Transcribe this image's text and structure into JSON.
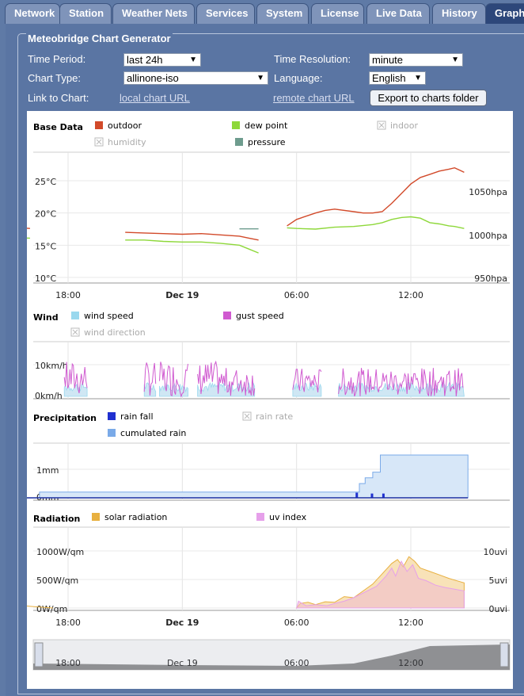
{
  "tabs": [
    {
      "label": "Network",
      "active": false
    },
    {
      "label": "Station",
      "active": false
    },
    {
      "label": "Weather Nets",
      "active": false
    },
    {
      "label": "Services",
      "active": false
    },
    {
      "label": "System",
      "active": false
    },
    {
      "label": "License",
      "active": false
    },
    {
      "label": "Live Data",
      "active": false
    },
    {
      "label": "History",
      "active": false
    },
    {
      "label": "Graphs",
      "active": true
    }
  ],
  "generator": {
    "title": "Meteobridge Chart Generator",
    "time_period_label": "Time Period:",
    "time_period_value": "last 24h",
    "time_resolution_label": "Time Resolution:",
    "time_resolution_value": "minute",
    "chart_type_label": "Chart Type:",
    "chart_type_value": "allinone-iso",
    "language_label": "Language:",
    "language_value": "English",
    "link_label": "Link to Chart:",
    "local_link": "local chart URL",
    "remote_link": "remote chart URL",
    "export_button": "Export to charts folder"
  },
  "colors": {
    "outdoor": "#d24a2a",
    "dew_point": "#8ed83a",
    "indoor": "#bbbbbb",
    "humidity": "#bbbbbb",
    "pressure": "#6e9c8e",
    "wind_speed": "#9ad8ee",
    "gust_speed": "#d05ad0",
    "wind_direction": "#bbbbbb",
    "rain_fall": "#2030d0",
    "rain_rate": "#bbbbbb",
    "cumulated_rain": "#7aaae8",
    "solar_radiation": "#e8b040",
    "uv_index": "#e6a0ea"
  },
  "x_ticks": [
    "18:00",
    "Dec 19",
    "06:00",
    "12:00"
  ],
  "chart_data": [
    {
      "type": "line",
      "title": "Base Data",
      "legend": [
        "outdoor",
        "dew point",
        "indoor",
        "humidity",
        "pressure"
      ],
      "hidden_series": [
        "indoor",
        "humidity"
      ],
      "y_ticks_left": [
        "25°C",
        "20°C",
        "15°C",
        "10°C"
      ],
      "y_ticks_right": [
        "1050hpa",
        "1000hpa",
        "950hpa"
      ],
      "ylim_left": [
        10,
        27
      ],
      "series": [
        {
          "name": "outdoor",
          "x": [
            14.8,
            16,
            18,
            19.5,
            21,
            22,
            23,
            24,
            25,
            26,
            27,
            27.5,
            28,
            29.5,
            30,
            31,
            31.5,
            32,
            33,
            33.5,
            34,
            34.5,
            35,
            35.5,
            36,
            36.5,
            37,
            37.5,
            38,
            38.3,
            38.6,
            38.8
          ],
          "y": [
            17.8,
            17.6,
            17.3,
            17.0,
            17.0,
            16.9,
            16.8,
            16.7,
            16.8,
            16.6,
            16.4,
            16.1,
            15.8,
            18.0,
            19.0,
            20.0,
            20.4,
            20.6,
            20.2,
            20.0,
            20.0,
            20.2,
            21.5,
            23.0,
            24.5,
            25.5,
            26.0,
            26.5,
            26.8,
            27.0,
            26.6,
            26.3
          ]
        },
        {
          "name": "dew point",
          "x": [
            14.8,
            16,
            18,
            19.5,
            21,
            22,
            23,
            24,
            25,
            26,
            27,
            27.5,
            28,
            29.5,
            30,
            31,
            32,
            33,
            34,
            34.5,
            35,
            35.5,
            36,
            36.5,
            37,
            37.5,
            38,
            38.3,
            38.8
          ],
          "y": [
            16.2,
            16.1,
            16.0,
            15.8,
            15.8,
            15.8,
            15.6,
            15.5,
            15.5,
            15.3,
            15.0,
            14.4,
            13.8,
            17.7,
            17.6,
            17.5,
            17.8,
            17.9,
            18.2,
            18.5,
            19.0,
            19.3,
            19.4,
            19.2,
            18.5,
            18.3,
            18.0,
            17.9,
            17.6
          ]
        },
        {
          "name": "pressure",
          "x": [
            14.8,
            18,
            21,
            24,
            27,
            28,
            29.5,
            31,
            33,
            35,
            37,
            38.8
          ],
          "y": [
            1005,
            1004,
            1004,
            1003,
            1003,
            1003,
            1003,
            1002,
            1002,
            1002,
            1002,
            1002
          ]
        }
      ]
    },
    {
      "type": "area",
      "title": "Wind",
      "legend": [
        "wind speed",
        "gust speed",
        "wind direction"
      ],
      "hidden_series": [
        "wind direction"
      ],
      "y_ticks_left": [
        "10km/h",
        "0km/h"
      ],
      "ylim": [
        0,
        13
      ]
    },
    {
      "type": "area",
      "title": "Precipitation",
      "legend": [
        "rain fall",
        "rain rate",
        "cumulated rain"
      ],
      "hidden_series": [
        "rain rate"
      ],
      "y_ticks_left": [
        "1mm",
        "0mm"
      ],
      "series": [
        {
          "name": "cumulated rain",
          "x": [
            14.8,
            16.5,
            30.0,
            33.3,
            33.6,
            34.0,
            34.4,
            39.0
          ],
          "y": [
            0.0,
            0.2,
            0.2,
            0.5,
            0.7,
            0.9,
            1.5,
            1.5
          ]
        }
      ]
    },
    {
      "type": "area",
      "title": "Radiation",
      "legend": [
        "solar radiation",
        "uv index"
      ],
      "y_ticks_left": [
        "1000W/qm",
        "500W/qm",
        "0W/qm"
      ],
      "y_ticks_right": [
        "10uvi",
        "5uvi",
        "0uvi"
      ],
      "ylim": [
        0,
        1000
      ]
    }
  ]
}
